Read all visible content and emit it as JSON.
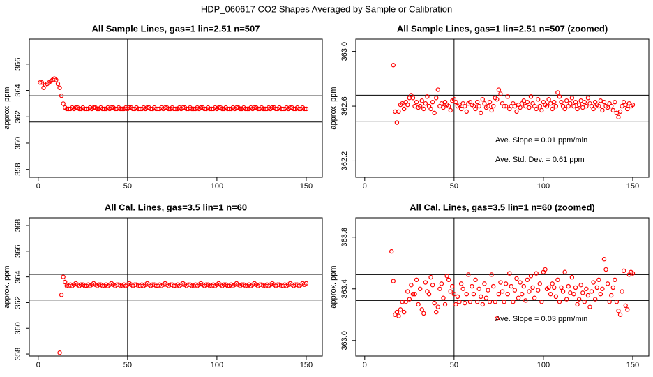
{
  "title": "HDP_060617  CO2 Shapes Averaged by Sample or Calibration",
  "chart_data": [
    {
      "type": "scatter",
      "title": "All Sample Lines, gas=1 lin=2.51 n=507",
      "y_label": "approx. ppm",
      "color": "#ff0000",
      "xlim": [
        -5,
        159
      ],
      "xticks": [
        0,
        50,
        100,
        150
      ],
      "ylim": [
        357.4,
        367.9
      ],
      "yticks": [
        358,
        360,
        362,
        364,
        366
      ],
      "vline": 50,
      "hlines": [
        363.6,
        361.6
      ],
      "annotations": [],
      "x": [
        1,
        2,
        3,
        4,
        5,
        6,
        7,
        8,
        9,
        10,
        11,
        12,
        13,
        14,
        15,
        16,
        17,
        18,
        19,
        20,
        21,
        22,
        23,
        24,
        25,
        26,
        27,
        28,
        29,
        30,
        31,
        32,
        33,
        34,
        35,
        36,
        37,
        38,
        39,
        40,
        41,
        42,
        43,
        44,
        45,
        46,
        47,
        48,
        49,
        50,
        51,
        52,
        53,
        54,
        55,
        56,
        57,
        58,
        59,
        60,
        61,
        62,
        63,
        64,
        65,
        66,
        67,
        68,
        69,
        70,
        71,
        72,
        73,
        74,
        75,
        76,
        77,
        78,
        79,
        80,
        81,
        82,
        83,
        84,
        85,
        86,
        87,
        88,
        89,
        90,
        91,
        92,
        93,
        94,
        95,
        96,
        97,
        98,
        99,
        100,
        101,
        102,
        103,
        104,
        105,
        106,
        107,
        108,
        109,
        110,
        111,
        112,
        113,
        114,
        115,
        116,
        117,
        118,
        119,
        120,
        121,
        122,
        123,
        124,
        125,
        126,
        127,
        128,
        129,
        130,
        131,
        132,
        133,
        134,
        135,
        136,
        137,
        138,
        139,
        140,
        141,
        142,
        143,
        144,
        145,
        146,
        147,
        148,
        149,
        150
      ],
      "values": [
        364.6,
        364.6,
        364.2,
        364.4,
        364.5,
        364.6,
        364.7,
        364.8,
        364.9,
        364.8,
        364.5,
        364.2,
        363.6,
        363.0,
        362.7,
        362.6,
        362.6,
        362.6,
        362.7,
        362.6,
        362.7,
        362.7,
        362.6,
        362.6,
        362.7,
        362.6,
        362.6,
        362.6,
        362.7,
        362.6,
        362.7,
        362.7,
        362.6,
        362.6,
        362.7,
        362.6,
        362.6,
        362.6,
        362.7,
        362.6,
        362.7,
        362.7,
        362.6,
        362.6,
        362.7,
        362.6,
        362.6,
        362.6,
        362.7,
        362.6,
        362.7,
        362.7,
        362.6,
        362.6,
        362.7,
        362.6,
        362.6,
        362.6,
        362.7,
        362.6,
        362.7,
        362.7,
        362.6,
        362.6,
        362.7,
        362.6,
        362.6,
        362.6,
        362.7,
        362.6,
        362.7,
        362.7,
        362.6,
        362.6,
        362.7,
        362.6,
        362.6,
        362.6,
        362.7,
        362.6,
        362.7,
        362.7,
        362.6,
        362.6,
        362.7,
        362.6,
        362.6,
        362.6,
        362.7,
        362.6,
        362.7,
        362.7,
        362.6,
        362.6,
        362.7,
        362.6,
        362.6,
        362.6,
        362.7,
        362.6,
        362.7,
        362.7,
        362.6,
        362.6,
        362.7,
        362.6,
        362.6,
        362.6,
        362.7,
        362.6,
        362.7,
        362.7,
        362.6,
        362.6,
        362.7,
        362.6,
        362.6,
        362.6,
        362.7,
        362.6,
        362.7,
        362.7,
        362.6,
        362.6,
        362.7,
        362.6,
        362.6,
        362.6,
        362.7,
        362.6,
        362.7,
        362.7,
        362.6,
        362.6,
        362.7,
        362.6,
        362.6,
        362.6,
        362.7,
        362.6,
        362.7,
        362.7,
        362.6,
        362.6,
        362.7,
        362.6,
        362.6,
        362.7,
        362.6,
        362.6
      ]
    },
    {
      "type": "scatter",
      "title": "All Sample Lines, gas=1 lin=2.51 n=507 (zoomed)",
      "y_label": "approx. ppm",
      "color": "#ff0000",
      "xlim": [
        -5,
        159
      ],
      "xticks": [
        0,
        50,
        100,
        150
      ],
      "ylim": [
        362.08,
        363.09
      ],
      "yticks": [
        362.2,
        362.6,
        {
          "value": 363,
          "label": "363.0"
        }
      ],
      "vline": 50,
      "hlines": [
        362.68,
        362.49
      ],
      "annotations": [
        "Ave. Slope =  0.01  ppm/min",
        "Ave. Std. Dev. =  0.61  ppm"
      ],
      "x": [
        16,
        17,
        18,
        19,
        20,
        21,
        22,
        23,
        24,
        25,
        26,
        27,
        28,
        29,
        30,
        31,
        32,
        33,
        34,
        35,
        36,
        37,
        38,
        39,
        40,
        41,
        42,
        43,
        44,
        45,
        46,
        47,
        48,
        49,
        50,
        51,
        52,
        53,
        54,
        55,
        56,
        57,
        58,
        59,
        60,
        61,
        62,
        63,
        64,
        65,
        66,
        67,
        68,
        69,
        70,
        71,
        72,
        73,
        74,
        75,
        76,
        77,
        78,
        79,
        80,
        81,
        82,
        83,
        84,
        85,
        86,
        87,
        88,
        89,
        90,
        91,
        92,
        93,
        94,
        95,
        96,
        97,
        98,
        99,
        100,
        101,
        102,
        103,
        104,
        105,
        106,
        107,
        108,
        109,
        110,
        111,
        112,
        113,
        114,
        115,
        116,
        117,
        118,
        119,
        120,
        121,
        122,
        123,
        124,
        125,
        126,
        127,
        128,
        129,
        130,
        131,
        132,
        133,
        134,
        135,
        136,
        137,
        138,
        139,
        140,
        141,
        142,
        143,
        144,
        145,
        146,
        147,
        148,
        149,
        150
      ],
      "values": [
        362.9,
        362.56,
        362.48,
        362.56,
        362.61,
        362.62,
        362.58,
        362.63,
        362.61,
        362.66,
        362.68,
        362.66,
        362.6,
        362.63,
        362.59,
        362.6,
        362.64,
        362.58,
        362.62,
        362.67,
        362.6,
        362.58,
        362.63,
        362.55,
        362.66,
        362.72,
        362.6,
        362.62,
        362.59,
        362.63,
        362.61,
        362.6,
        362.57,
        362.64,
        362.65,
        362.63,
        362.6,
        362.61,
        362.58,
        362.62,
        362.6,
        362.56,
        362.62,
        362.63,
        362.61,
        362.6,
        362.58,
        362.63,
        362.6,
        362.55,
        362.65,
        362.62,
        362.59,
        362.6,
        362.63,
        362.57,
        362.6,
        362.66,
        362.65,
        362.72,
        362.69,
        362.62,
        362.6,
        362.6,
        362.67,
        362.58,
        362.6,
        362.62,
        362.6,
        362.56,
        362.61,
        362.59,
        362.62,
        362.64,
        362.6,
        362.63,
        362.59,
        362.67,
        362.62,
        362.6,
        362.58,
        362.65,
        362.6,
        362.57,
        362.63,
        362.61,
        362.6,
        362.65,
        362.62,
        362.58,
        362.63,
        362.6,
        362.7,
        362.67,
        362.63,
        362.6,
        362.58,
        362.64,
        362.6,
        362.62,
        362.66,
        362.6,
        362.63,
        362.58,
        362.61,
        362.64,
        362.59,
        362.63,
        362.6,
        362.66,
        362.62,
        362.6,
        362.58,
        362.63,
        362.61,
        362.6,
        362.64,
        362.57,
        362.63,
        362.6,
        362.59,
        362.62,
        362.6,
        362.57,
        362.63,
        362.55,
        362.52,
        362.56,
        362.6,
        362.63,
        362.61,
        362.58,
        362.62,
        362.6,
        362.61
      ]
    },
    {
      "type": "scatter",
      "title": "All Cal. Lines, gas=3.5 lin=1 n=60",
      "y_label": "approx. ppm",
      "color": "#ff0000",
      "xlim": [
        -5,
        159
      ],
      "xticks": [
        0,
        50,
        100,
        150
      ],
      "ylim": [
        357.84,
        368.6
      ],
      "yticks": [
        358,
        360,
        362,
        364,
        366,
        368
      ],
      "vline": 50,
      "hlines": [
        364.2,
        362.2
      ],
      "annotations": [],
      "x": [
        12,
        13,
        14,
        15,
        16,
        17,
        18,
        19,
        20,
        21,
        22,
        23,
        24,
        25,
        26,
        27,
        28,
        29,
        30,
        31,
        32,
        33,
        34,
        35,
        36,
        37,
        38,
        39,
        40,
        41,
        42,
        43,
        44,
        45,
        46,
        47,
        48,
        49,
        50,
        51,
        52,
        53,
        54,
        55,
        56,
        57,
        58,
        59,
        60,
        61,
        62,
        63,
        64,
        65,
        66,
        67,
        68,
        69,
        70,
        71,
        72,
        73,
        74,
        75,
        76,
        77,
        78,
        79,
        80,
        81,
        82,
        83,
        84,
        85,
        86,
        87,
        88,
        89,
        90,
        91,
        92,
        93,
        94,
        95,
        96,
        97,
        98,
        99,
        100,
        101,
        102,
        103,
        104,
        105,
        106,
        107,
        108,
        109,
        110,
        111,
        112,
        113,
        114,
        115,
        116,
        117,
        118,
        119,
        120,
        121,
        122,
        123,
        124,
        125,
        126,
        127,
        128,
        129,
        130,
        131,
        132,
        133,
        134,
        135,
        136,
        137,
        138,
        139,
        140,
        141,
        142,
        143,
        144,
        145,
        146,
        147,
        148,
        149,
        150
      ],
      "values": [
        358.1,
        362.6,
        364.0,
        363.6,
        363.3,
        363.3,
        363.4,
        363.3,
        363.4,
        363.5,
        363.4,
        363.3,
        363.4,
        363.4,
        363.3,
        363.3,
        363.4,
        363.3,
        363.4,
        363.5,
        363.4,
        363.3,
        363.4,
        363.4,
        363.3,
        363.3,
        363.4,
        363.3,
        363.4,
        363.5,
        363.4,
        363.3,
        363.4,
        363.4,
        363.3,
        363.3,
        363.4,
        363.3,
        363.4,
        363.5,
        363.4,
        363.3,
        363.4,
        363.4,
        363.3,
        363.3,
        363.4,
        363.3,
        363.4,
        363.5,
        363.4,
        363.3,
        363.4,
        363.4,
        363.3,
        363.3,
        363.4,
        363.3,
        363.4,
        363.5,
        363.4,
        363.3,
        363.4,
        363.4,
        363.3,
        363.3,
        363.4,
        363.3,
        363.4,
        363.5,
        363.4,
        363.3,
        363.4,
        363.4,
        363.3,
        363.3,
        363.4,
        363.3,
        363.4,
        363.5,
        363.4,
        363.3,
        363.4,
        363.4,
        363.3,
        363.3,
        363.4,
        363.3,
        363.4,
        363.5,
        363.4,
        363.3,
        363.4,
        363.4,
        363.3,
        363.3,
        363.4,
        363.3,
        363.4,
        363.5,
        363.4,
        363.3,
        363.4,
        363.4,
        363.3,
        363.3,
        363.4,
        363.3,
        363.4,
        363.5,
        363.4,
        363.3,
        363.4,
        363.4,
        363.3,
        363.3,
        363.4,
        363.3,
        363.4,
        363.5,
        363.4,
        363.3,
        363.4,
        363.4,
        363.3,
        363.3,
        363.4,
        363.3,
        363.4,
        363.5,
        363.4,
        363.3,
        363.4,
        363.4,
        363.3,
        363.4,
        363.5,
        363.4,
        363.5
      ]
    },
    {
      "type": "scatter",
      "title": "All Cal. Lines, gas=3.5 lin=1 n=60 (zoomed)",
      "y_label": "approx. ppm",
      "color": "#ff0000",
      "xlim": [
        -5,
        159
      ],
      "xticks": [
        0,
        50,
        100,
        150
      ],
      "ylim": [
        362.88,
        363.95
      ],
      "yticks": [
        {
          "value": 363,
          "label": "363.0"
        },
        363.4,
        363.8
      ],
      "vline": 50,
      "hlines": [
        363.51,
        363.31
      ],
      "annotations": [
        "Ave. Slope =  0.03  ppm/min"
      ],
      "x": [
        15,
        16,
        17,
        18,
        19,
        20,
        21,
        22,
        23,
        24,
        25,
        26,
        27,
        28,
        29,
        30,
        31,
        32,
        33,
        34,
        35,
        36,
        37,
        38,
        39,
        40,
        41,
        42,
        43,
        44,
        45,
        46,
        47,
        48,
        49,
        50,
        51,
        52,
        53,
        54,
        55,
        56,
        57,
        58,
        59,
        60,
        61,
        62,
        63,
        64,
        65,
        66,
        67,
        68,
        69,
        70,
        71,
        72,
        73,
        74,
        75,
        76,
        77,
        78,
        79,
        80,
        81,
        82,
        83,
        84,
        85,
        86,
        87,
        88,
        89,
        90,
        91,
        92,
        93,
        94,
        95,
        96,
        97,
        98,
        99,
        100,
        101,
        102,
        103,
        104,
        105,
        106,
        107,
        108,
        109,
        110,
        111,
        112,
        113,
        114,
        115,
        116,
        117,
        118,
        119,
        120,
        121,
        122,
        123,
        124,
        125,
        126,
        127,
        128,
        129,
        130,
        131,
        132,
        133,
        134,
        135,
        136,
        137,
        138,
        139,
        140,
        141,
        142,
        143,
        144,
        145,
        146,
        147,
        148,
        149,
        150
      ],
      "values": [
        363.69,
        363.46,
        363.2,
        363.22,
        363.19,
        363.24,
        363.3,
        363.22,
        363.3,
        363.38,
        363.32,
        363.43,
        363.36,
        363.36,
        363.47,
        363.28,
        363.4,
        363.24,
        363.21,
        363.45,
        363.38,
        363.36,
        363.49,
        363.43,
        363.29,
        363.22,
        363.26,
        363.4,
        363.44,
        363.33,
        363.28,
        363.5,
        363.47,
        363.38,
        363.42,
        363.36,
        363.28,
        363.34,
        363.3,
        363.44,
        363.4,
        363.29,
        363.36,
        363.51,
        363.3,
        363.42,
        363.36,
        363.47,
        363.3,
        363.4,
        363.34,
        363.28,
        363.44,
        363.33,
        363.39,
        363.3,
        363.51,
        363.42,
        363.3,
        363.17,
        363.36,
        363.45,
        363.38,
        363.3,
        363.44,
        363.36,
        363.52,
        363.42,
        363.3,
        363.39,
        363.48,
        363.33,
        363.45,
        363.36,
        363.42,
        363.31,
        363.47,
        363.38,
        363.5,
        363.41,
        363.33,
        363.52,
        363.39,
        363.44,
        363.3,
        363.53,
        363.55,
        363.4,
        363.41,
        363.36,
        363.44,
        363.41,
        363.34,
        363.47,
        363.3,
        363.41,
        363.38,
        363.53,
        363.32,
        363.42,
        363.37,
        363.49,
        363.36,
        363.41,
        363.28,
        363.32,
        363.43,
        363.37,
        363.3,
        363.4,
        363.35,
        363.26,
        363.38,
        363.45,
        363.32,
        363.41,
        363.47,
        363.36,
        363.4,
        363.63,
        363.55,
        363.44,
        363.3,
        363.35,
        363.41,
        363.47,
        363.3,
        363.23,
        363.2,
        363.38,
        363.54,
        363.27,
        363.24,
        363.51,
        363.53,
        363.52
      ]
    }
  ]
}
